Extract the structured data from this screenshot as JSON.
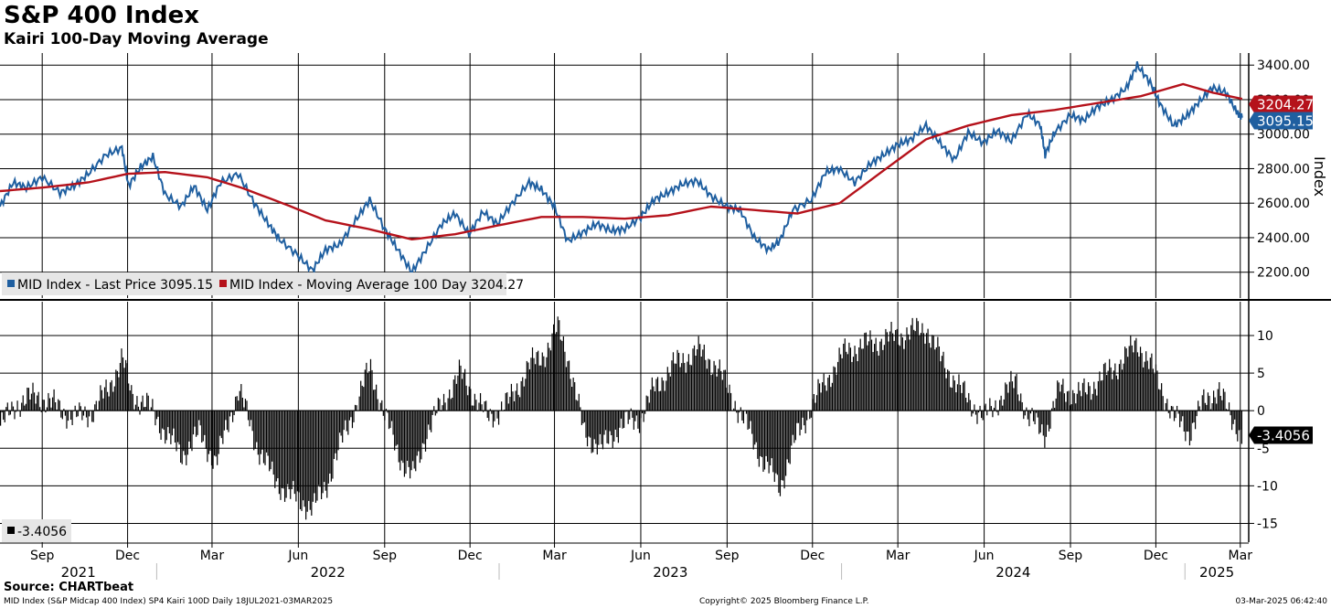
{
  "title": "S&P 400 Index",
  "subtitle": "Kairi 100-Day Moving Average",
  "source": "Source: CHARTbeat",
  "footer": {
    "left": "MID Index (S&P Midcap 400 Index) SP4 Kairi 100D  Daily 18JUL2021-03MAR2025",
    "center": "Copyright© 2025 Bloomberg Finance L.P.",
    "right": "03-Mar-2025 06:42:40"
  },
  "chart_data": [
    {
      "type": "line",
      "panel": "upper",
      "ylabel": "Index",
      "ylim": [
        2050,
        3470
      ],
      "yticks": [
        "2200.00",
        "2400.00",
        "2600.00",
        "2800.00",
        "3000.00",
        "3200.00",
        "3400.00"
      ],
      "legend": [
        {
          "text": "MID Index - Last Price 3095.15",
          "color": "#1f5fa0"
        },
        {
          "text": "MID Index - Moving Average 100 Day 3204.27",
          "color": "#b5121b"
        }
      ],
      "last_labels": [
        {
          "text": "3204.27",
          "value": 3204.27,
          "color": "#b5121b"
        },
        {
          "text": "3095.15",
          "value": 3095.15,
          "color": "#1f5fa0"
        }
      ],
      "series": [
        {
          "name": "MID Index - Last Price",
          "color": "#1f5fa0",
          "x": [
            "2021-07-18",
            "2021-08-01",
            "2021-08-15",
            "2021-09-01",
            "2021-09-20",
            "2021-10-05",
            "2021-10-20",
            "2021-11-08",
            "2021-11-25",
            "2021-12-02",
            "2021-12-15",
            "2021-12-28",
            "2022-01-10",
            "2022-01-27",
            "2022-02-10",
            "2022-02-24",
            "2022-03-10",
            "2022-03-29",
            "2022-04-15",
            "2022-04-30",
            "2022-05-12",
            "2022-05-31",
            "2022-06-16",
            "2022-06-30",
            "2022-07-15",
            "2022-08-01",
            "2022-08-16",
            "2022-09-01",
            "2022-09-15",
            "2022-09-30",
            "2022-10-15",
            "2022-11-01",
            "2022-11-15",
            "2022-11-30",
            "2022-12-15",
            "2022-12-30",
            "2023-01-15",
            "2023-02-02",
            "2023-02-15",
            "2023-03-01",
            "2023-03-15",
            "2023-03-31",
            "2023-04-15",
            "2023-05-01",
            "2023-05-15",
            "2023-06-01",
            "2023-06-15",
            "2023-06-30",
            "2023-07-15",
            "2023-07-31",
            "2023-08-15",
            "2023-09-01",
            "2023-09-15",
            "2023-09-30",
            "2023-10-15",
            "2023-10-27",
            "2023-11-10",
            "2023-11-30",
            "2023-12-15",
            "2023-12-29",
            "2024-01-15",
            "2024-02-01",
            "2024-02-15",
            "2024-03-01",
            "2024-03-15",
            "2024-03-31",
            "2024-04-15",
            "2024-04-30",
            "2024-05-15",
            "2024-05-31",
            "2024-06-15",
            "2024-06-30",
            "2024-07-17",
            "2024-07-31",
            "2024-08-05",
            "2024-08-15",
            "2024-09-01",
            "2024-09-15",
            "2024-09-30",
            "2024-10-15",
            "2024-10-31",
            "2024-11-11",
            "2024-11-25",
            "2024-12-06",
            "2024-12-20",
            "2025-01-02",
            "2025-01-15",
            "2025-01-30",
            "2025-02-14",
            "2025-02-25",
            "2025-03-03"
          ],
          "values": [
            2580,
            2720,
            2690,
            2750,
            2660,
            2700,
            2770,
            2880,
            2920,
            2700,
            2810,
            2870,
            2650,
            2580,
            2700,
            2560,
            2720,
            2770,
            2600,
            2480,
            2390,
            2300,
            2210,
            2330,
            2360,
            2500,
            2620,
            2450,
            2330,
            2200,
            2330,
            2480,
            2540,
            2420,
            2550,
            2480,
            2600,
            2720,
            2680,
            2580,
            2380,
            2430,
            2480,
            2440,
            2450,
            2520,
            2620,
            2660,
            2710,
            2730,
            2640,
            2580,
            2560,
            2400,
            2330,
            2380,
            2560,
            2620,
            2780,
            2800,
            2720,
            2830,
            2880,
            2940,
            2970,
            3050,
            2950,
            2850,
            3010,
            2950,
            3020,
            2960,
            3120,
            3050,
            2880,
            3010,
            3110,
            3080,
            3160,
            3200,
            3270,
            3400,
            3300,
            3170,
            3050,
            3100,
            3180,
            3270,
            3240,
            3130,
            3095.15
          ]
        },
        {
          "name": "MID Index - Moving Average 100 Day",
          "color": "#b5121b",
          "x": [
            "2021-07-18",
            "2021-09-01",
            "2021-10-20",
            "2021-12-01",
            "2022-01-10",
            "2022-02-24",
            "2022-04-01",
            "2022-05-15",
            "2022-06-30",
            "2022-08-15",
            "2022-09-30",
            "2022-11-15",
            "2022-12-30",
            "2023-02-15",
            "2023-03-31",
            "2023-05-15",
            "2023-06-30",
            "2023-08-15",
            "2023-09-30",
            "2023-11-15",
            "2023-12-30",
            "2024-02-15",
            "2024-03-31",
            "2024-05-15",
            "2024-06-30",
            "2024-08-15",
            "2024-09-30",
            "2024-11-15",
            "2024-12-30",
            "2025-01-31",
            "2025-03-03"
          ],
          "values": [
            2670,
            2690,
            2720,
            2770,
            2780,
            2750,
            2690,
            2600,
            2500,
            2450,
            2390,
            2420,
            2470,
            2520,
            2520,
            2510,
            2530,
            2580,
            2560,
            2540,
            2600,
            2790,
            2970,
            3050,
            3110,
            3140,
            3180,
            3220,
            3290,
            3240,
            3204.27
          ]
        }
      ],
      "xlim": [
        "2021-07-18",
        "2025-03-10"
      ]
    },
    {
      "type": "bar",
      "panel": "lower",
      "ylim": [
        -17.5,
        14.5
      ],
      "yticks": [
        "-15",
        "-10",
        "-5",
        "0",
        "5",
        "10"
      ],
      "legend": [
        {
          "text": "-3.4056",
          "color": "#000000"
        }
      ],
      "last_labels": [
        {
          "text": "-3.4056",
          "value": -3.4056,
          "color": "#000000"
        }
      ],
      "series": [
        {
          "name": "Kairi 100 Day",
          "color": "#000000",
          "x": [
            "2021-07-18",
            "2021-08-05",
            "2021-08-25",
            "2021-09-10",
            "2021-10-05",
            "2021-10-25",
            "2021-11-10",
            "2021-11-25",
            "2021-12-05",
            "2021-12-20",
            "2022-01-05",
            "2022-01-27",
            "2022-02-15",
            "2022-03-05",
            "2022-03-29",
            "2022-04-15",
            "2022-05-05",
            "2022-05-20",
            "2022-06-16",
            "2022-06-30",
            "2022-07-20",
            "2022-08-05",
            "2022-08-16",
            "2022-09-01",
            "2022-09-20",
            "2022-09-30",
            "2022-10-15",
            "2022-11-01",
            "2022-11-20",
            "2022-12-05",
            "2022-12-20",
            "2023-01-10",
            "2023-02-02",
            "2023-02-20",
            "2023-03-05",
            "2023-03-15",
            "2023-04-01",
            "2023-04-20",
            "2023-05-10",
            "2023-05-31",
            "2023-06-15",
            "2023-07-05",
            "2023-07-31",
            "2023-08-20",
            "2023-09-05",
            "2023-09-25",
            "2023-10-10",
            "2023-10-27",
            "2023-11-15",
            "2023-12-01",
            "2023-12-15",
            "2024-01-05",
            "2024-02-01",
            "2024-03-01",
            "2024-03-31",
            "2024-04-15",
            "2024-05-05",
            "2024-05-31",
            "2024-06-20",
            "2024-07-05",
            "2024-07-17",
            "2024-08-05",
            "2024-08-20",
            "2024-09-10",
            "2024-09-30",
            "2024-10-20",
            "2024-11-11",
            "2024-11-25",
            "2024-12-10",
            "2024-12-20",
            "2025-01-05",
            "2025-01-20",
            "2025-02-05",
            "2025-02-18",
            "2025-02-25",
            "2025-03-03"
          ],
          "values": [
            -2,
            1,
            2,
            1,
            -1,
            0,
            3,
            7,
            2,
            1,
            -2,
            -6,
            -3,
            -7,
            3,
            -4,
            -9,
            -11,
            -13,
            -10,
            -3,
            2,
            6,
            -1,
            -7,
            -9,
            -3,
            1,
            5,
            2,
            -1,
            1,
            6,
            8,
            11,
            7,
            -3,
            -5,
            -2,
            -1,
            3,
            6,
            8,
            6,
            2,
            -3,
            -7,
            -10,
            -3,
            1,
            4,
            8,
            9,
            10,
            11,
            7,
            3,
            -1,
            2,
            4,
            -1,
            -3,
            3,
            2,
            4,
            6,
            9,
            6,
            2,
            -1,
            -3,
            1,
            3,
            -1,
            -2,
            -3.4056
          ]
        }
      ],
      "xlim": [
        "2021-07-18",
        "2025-03-10"
      ]
    }
  ],
  "x_axis": {
    "months": [
      {
        "label": "Sep",
        "date": "2021-09-01"
      },
      {
        "label": "Dec",
        "date": "2021-12-01"
      },
      {
        "label": "Mar",
        "date": "2022-03-01"
      },
      {
        "label": "Jun",
        "date": "2022-06-01"
      },
      {
        "label": "Sep",
        "date": "2022-09-01"
      },
      {
        "label": "Dec",
        "date": "2022-12-01"
      },
      {
        "label": "Mar",
        "date": "2023-03-01"
      },
      {
        "label": "Jun",
        "date": "2023-06-01"
      },
      {
        "label": "Sep",
        "date": "2023-09-01"
      },
      {
        "label": "Dec",
        "date": "2023-12-01"
      },
      {
        "label": "Mar",
        "date": "2024-03-01"
      },
      {
        "label": "Jun",
        "date": "2024-06-01"
      },
      {
        "label": "Sep",
        "date": "2024-09-01"
      },
      {
        "label": "Dec",
        "date": "2024-12-01"
      },
      {
        "label": "Mar",
        "date": "2025-03-01"
      }
    ],
    "years": [
      {
        "label": "2021",
        "start": "2021-07-18",
        "end": "2022-01-01"
      },
      {
        "label": "2022",
        "start": "2022-01-01",
        "end": "2023-01-01"
      },
      {
        "label": "2023",
        "start": "2023-01-01",
        "end": "2024-01-01"
      },
      {
        "label": "2024",
        "start": "2024-01-01",
        "end": "2025-01-01"
      },
      {
        "label": "2025",
        "start": "2025-01-01",
        "end": "2025-03-10"
      }
    ]
  }
}
